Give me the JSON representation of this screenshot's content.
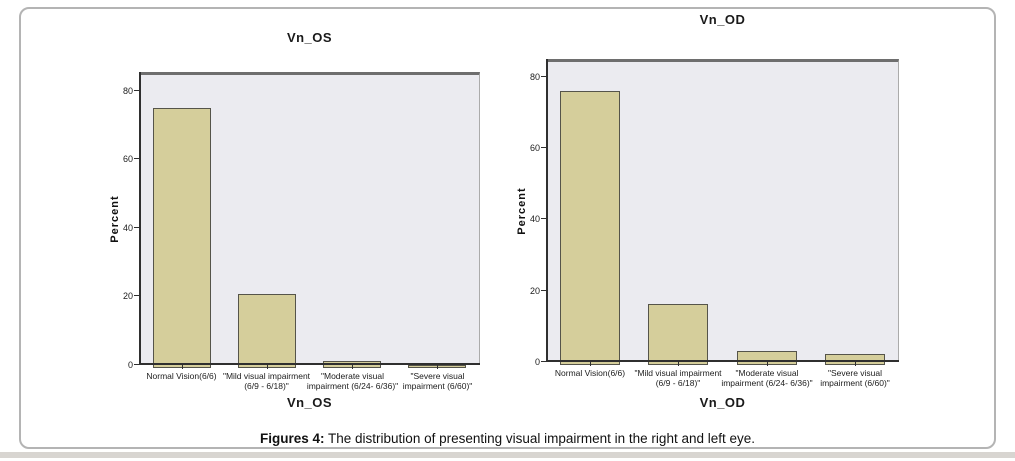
{
  "figure": {
    "caption": {
      "label": "Figures 4:",
      "text": " The distribution of presenting visual impairment in the right and left eye."
    }
  },
  "colors": {
    "bar_fill": "#d5ce9b",
    "bar_border": "#55544a",
    "plot_background": "#ebebf0",
    "plot_top_border": "#6e6e6e",
    "axis_line": "#2f2f2f",
    "panel_border": "#b4b4b4",
    "bottom_strip": "#d8d5d1"
  },
  "chart_data": [
    {
      "type": "bar",
      "title": "Vn_OS",
      "xlabel": "Vn_OS",
      "ylabel": "Percent",
      "categories": [
        [
          "Normal Vision(6/6)"
        ],
        [
          "\"Mild visual  impairment",
          "(6/9 - 6/18)\""
        ],
        [
          "\"Moderate visual",
          "impairment (6/24- 6/36)\""
        ],
        [
          "\"Severe visual",
          "impairment (6/60)\""
        ]
      ],
      "values": [
        76,
        21.5,
        2,
        1
      ],
      "ytick_values": [
        0,
        20,
        40,
        60,
        80
      ],
      "ytick_labels": [
        "0",
        "20",
        "40",
        "60",
        "80"
      ],
      "ylim": [
        0,
        85.5
      ],
      "grid": false,
      "legend": "none"
    },
    {
      "type": "bar",
      "title": "Vn_OD",
      "xlabel": "Vn_OD",
      "ylabel": "Percent",
      "categories": [
        [
          "Normal Vision(6/6)"
        ],
        [
          "\"Mild visual  impairment",
          "(6/9 - 6/18)\""
        ],
        [
          "\"Moderate visual",
          "impairment (6/24- 6/36)\""
        ],
        [
          "\"Severe visual",
          "impairment (6/60)\""
        ]
      ],
      "values": [
        77,
        17,
        4,
        3
      ],
      "ytick_values": [
        0,
        20,
        40,
        60,
        80
      ],
      "ytick_labels": [
        "0",
        "20",
        "40",
        "60",
        "80"
      ],
      "ylim": [
        0,
        85
      ],
      "grid": false,
      "legend": "none"
    }
  ]
}
